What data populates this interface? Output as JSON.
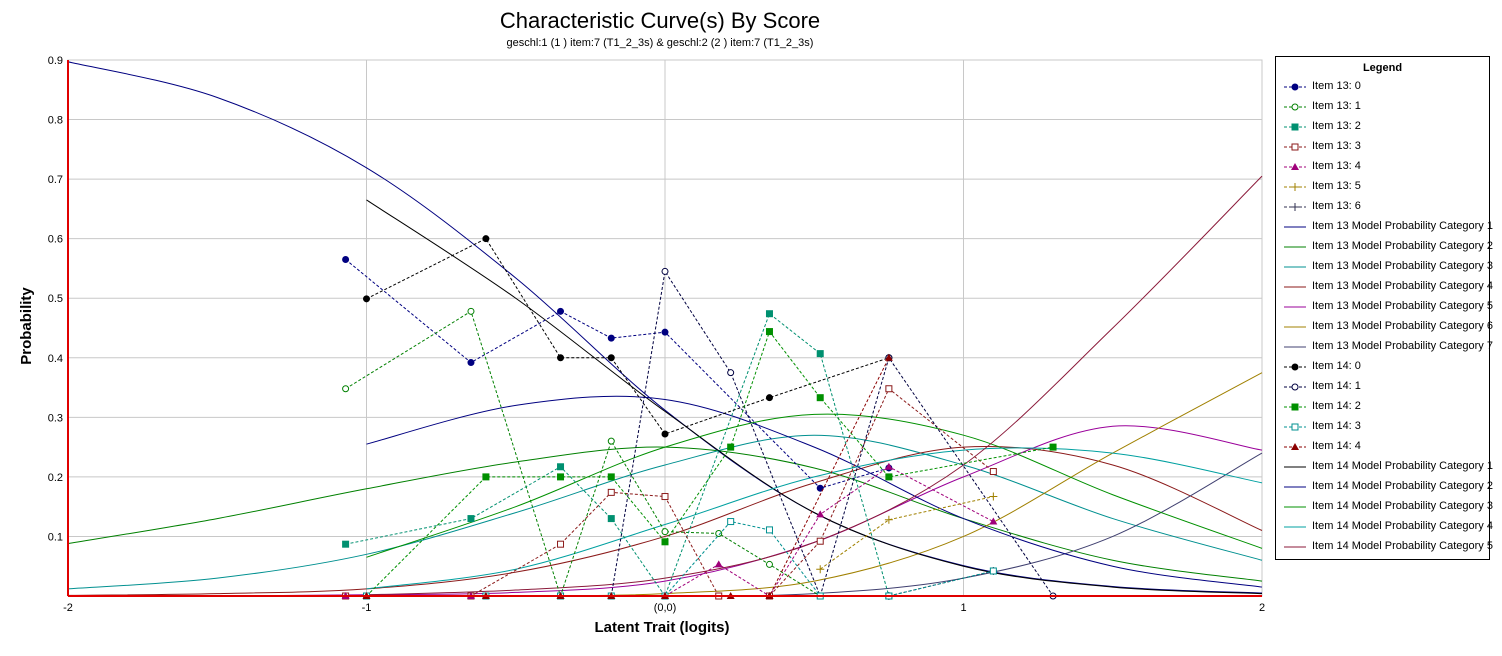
{
  "chart_data": {
    "type": "line",
    "title": "Characteristic Curve(s) By Score",
    "subtitle": "geschl:1 (1 ) item:7 (T1_2_3s) & geschl:2 (2 ) item:7 (T1_2_3s)",
    "xlabel": "Latent Trait (logits)",
    "ylabel": "Probability",
    "xlim": [
      -2,
      2
    ],
    "ylim": [
      0,
      0.9
    ],
    "x_tick_labels": [
      "-2",
      "-1",
      "(0,0)",
      "1",
      "2"
    ],
    "x_ticks": [
      -2,
      -1,
      0,
      1,
      2
    ],
    "y_tick_labels": [
      "0.1",
      "0.2",
      "0.3",
      "0.4",
      "0.5",
      "0.6",
      "0.7",
      "0.8",
      "0.9"
    ],
    "y_ticks": [
      0.1,
      0.2,
      0.3,
      0.4,
      0.5,
      0.6,
      0.7,
      0.8,
      0.9
    ],
    "grid": true,
    "legend_title": "Legend",
    "legend_position": "right",
    "series": [
      {
        "name": "Item 13: 0",
        "kind": "observed",
        "color": "#000080",
        "marker": "circle-filled",
        "x": [
          -1.07,
          -0.65,
          -0.35,
          -0.18,
          0.0,
          0.52,
          0.75
        ],
        "y": [
          0.565,
          0.392,
          0.478,
          0.433,
          0.443,
          0.181,
          0.215
        ]
      },
      {
        "name": "Item 13: 1",
        "kind": "observed",
        "color": "#008000",
        "marker": "circle-open",
        "x": [
          -1.07,
          -0.65,
          -0.35,
          -0.18,
          0.0,
          0.18,
          0.35,
          0.52,
          0.75
        ],
        "y": [
          0.348,
          0.478,
          0.0,
          0.26,
          0.108,
          0.105,
          0.053,
          0.0,
          0.0
        ]
      },
      {
        "name": "Item 13: 2",
        "kind": "observed",
        "color": "#009070",
        "marker": "square-filled",
        "x": [
          -1.07,
          -0.65,
          -0.35,
          -0.18,
          0.0,
          0.35,
          0.52,
          0.75
        ],
        "y": [
          0.087,
          0.13,
          0.217,
          0.13,
          0.0,
          0.474,
          0.407,
          0.0
        ]
      },
      {
        "name": "Item 13: 3",
        "kind": "observed",
        "color": "#8B1A1A",
        "marker": "square-open",
        "x": [
          -1.07,
          -0.65,
          -0.35,
          -0.18,
          0.0,
          0.18,
          0.35,
          0.52,
          0.75,
          1.1
        ],
        "y": [
          0.0,
          0.0,
          0.087,
          0.174,
          0.167,
          0.0,
          0.0,
          0.092,
          0.348,
          0.209
        ]
      },
      {
        "name": "Item 13: 4",
        "kind": "observed",
        "color": "#A0007A",
        "marker": "triangle-filled",
        "x": [
          -1.07,
          -0.65,
          -0.35,
          -0.18,
          0.0,
          0.18,
          0.35,
          0.52,
          0.75,
          1.1
        ],
        "y": [
          0.0,
          0.0,
          0.0,
          0.0,
          0.0,
          0.053,
          0.0,
          0.137,
          0.217,
          0.125
        ]
      },
      {
        "name": "Item 13: 5",
        "kind": "observed",
        "color": "#A08000",
        "marker": "plus",
        "x": [
          0.52,
          0.75,
          1.1
        ],
        "y": [
          0.045,
          0.128,
          0.167
        ]
      },
      {
        "name": "Item 13: 6",
        "kind": "observed",
        "color": "#303050",
        "marker": "plus",
        "x": [
          0.75,
          1.1
        ],
        "y": [
          0.0,
          0.042
        ]
      },
      {
        "name": "Item 13 Model Probability Category 1",
        "kind": "model",
        "color": "#000080",
        "x": [
          -2.0,
          -1.5,
          -1.0,
          -0.5,
          0.0,
          0.5,
          1.0,
          1.5,
          2.0
        ],
        "y": [
          0.897,
          0.837,
          0.719,
          0.534,
          0.312,
          0.14,
          0.051,
          0.016,
          0.005
        ]
      },
      {
        "name": "Item 13 Model Probability Category 2",
        "kind": "model",
        "color": "#008000",
        "x": [
          -2.0,
          -1.5,
          -1.0,
          -0.5,
          0.0,
          0.5,
          1.0,
          1.5,
          2.0
        ],
        "y": [
          0.088,
          0.13,
          0.18,
          0.225,
          0.25,
          0.215,
          0.13,
          0.06,
          0.025
        ]
      },
      {
        "name": "Item 13 Model Probability Category 3",
        "kind": "model",
        "color": "#009090",
        "x": [
          -2.0,
          -1.5,
          -1.0,
          -0.5,
          0.0,
          0.5,
          1.0,
          1.5,
          2.0
        ],
        "y": [
          0.012,
          0.03,
          0.07,
          0.14,
          0.22,
          0.27,
          0.22,
          0.13,
          0.06
        ]
      },
      {
        "name": "Item 13 Model Probability Category 4",
        "kind": "model",
        "color": "#8B1A1A",
        "x": [
          -2.0,
          -1.5,
          -1.0,
          -0.5,
          0.0,
          0.5,
          1.0,
          1.5,
          2.0
        ],
        "y": [
          0.001,
          0.004,
          0.012,
          0.04,
          0.1,
          0.19,
          0.25,
          0.22,
          0.11
        ]
      },
      {
        "name": "Item 13 Model Probability Category 5",
        "kind": "model",
        "color": "#9A009A",
        "x": [
          -2.0,
          -1.5,
          -1.0,
          -0.5,
          0.0,
          0.5,
          1.0,
          1.5,
          2.0
        ],
        "y": [
          0.0,
          0.0,
          0.002,
          0.006,
          0.025,
          0.09,
          0.2,
          0.285,
          0.245
        ]
      },
      {
        "name": "Item 13 Model Probability Category 6",
        "kind": "model",
        "color": "#A08000",
        "x": [
          -2.0,
          -1.5,
          -1.0,
          -0.5,
          0.0,
          0.5,
          1.0,
          1.5,
          2.0
        ],
        "y": [
          0.0,
          0.0,
          0.0,
          0.0,
          0.004,
          0.025,
          0.1,
          0.24,
          0.375
        ]
      },
      {
        "name": "Item 13 Model Probability Category 7",
        "kind": "model",
        "color": "#404070",
        "x": [
          -2.0,
          -1.5,
          -1.0,
          -0.5,
          0.0,
          0.5,
          1.0,
          1.5,
          2.0
        ],
        "y": [
          0.0,
          0.0,
          0.0,
          0.0,
          0.0,
          0.004,
          0.03,
          0.1,
          0.24
        ]
      },
      {
        "name": "Item 14: 0",
        "kind": "observed",
        "color": "#000000",
        "marker": "circle-filled",
        "x": [
          -1.0,
          -0.6,
          -0.35,
          -0.18,
          0.0,
          0.35,
          0.75
        ],
        "y": [
          0.499,
          0.6,
          0.4,
          0.4,
          0.272,
          0.333,
          0.4
        ]
      },
      {
        "name": "Item 14: 1",
        "kind": "observed",
        "color": "#000040",
        "marker": "circle-open",
        "x": [
          -1.0,
          -0.6,
          -0.35,
          -0.18,
          0.0,
          0.22,
          0.52,
          0.75,
          1.3
        ],
        "y": [
          0.0,
          0.0,
          0.0,
          0.0,
          0.545,
          0.375,
          0.0,
          0.4,
          0.0
        ]
      },
      {
        "name": "Item 14: 2",
        "kind": "observed",
        "color": "#009000",
        "marker": "square-filled",
        "x": [
          -1.0,
          -0.6,
          -0.35,
          -0.18,
          0.0,
          0.22,
          0.35,
          0.52,
          0.75,
          1.3
        ],
        "y": [
          0.0,
          0.2,
          0.2,
          0.2,
          0.091,
          0.25,
          0.444,
          0.333,
          0.2,
          0.25
        ]
      },
      {
        "name": "Item 14: 3",
        "kind": "observed",
        "color": "#009090",
        "marker": "square-open",
        "x": [
          -1.0,
          -0.6,
          -0.35,
          -0.18,
          0.0,
          0.22,
          0.35,
          0.52,
          0.75,
          1.1
        ],
        "y": [
          0.0,
          0.0,
          0.0,
          0.0,
          0.0,
          0.125,
          0.111,
          0.0,
          0.0,
          0.042
        ]
      },
      {
        "name": "Item 14: 4",
        "kind": "observed",
        "color": "#8B0000",
        "marker": "triangle-filled",
        "x": [
          -1.0,
          -0.6,
          -0.35,
          -0.18,
          0.0,
          0.22,
          0.35,
          0.75
        ],
        "y": [
          0.0,
          0.0,
          0.0,
          0.0,
          0.0,
          0.0,
          0.0,
          0.4
        ]
      },
      {
        "name": "Item 14 Model Probability Category 1",
        "kind": "model",
        "color": "#000000",
        "x": [
          -1.0,
          -0.5,
          0.0,
          0.5,
          1.0,
          1.5,
          2.0
        ],
        "y": [
          0.665,
          0.5,
          0.31,
          0.14,
          0.05,
          0.015,
          0.004
        ]
      },
      {
        "name": "Item 14 Model Probability Category 2",
        "kind": "model",
        "color": "#000080",
        "x": [
          -1.0,
          -0.5,
          0.0,
          0.5,
          1.0,
          1.5,
          2.0
        ],
        "y": [
          0.255,
          0.32,
          0.33,
          0.25,
          0.13,
          0.05,
          0.015
        ]
      },
      {
        "name": "Item 14 Model Probability Category 3",
        "kind": "model",
        "color": "#009000",
        "x": [
          -1.0,
          -0.5,
          0.0,
          0.5,
          1.0,
          1.5,
          2.0
        ],
        "y": [
          0.065,
          0.15,
          0.25,
          0.305,
          0.27,
          0.17,
          0.08
        ]
      },
      {
        "name": "Item 14 Model Probability Category 4",
        "kind": "model",
        "color": "#00A0A0",
        "x": [
          -1.0,
          -0.5,
          0.0,
          0.5,
          1.0,
          1.5,
          2.0
        ],
        "y": [
          0.012,
          0.045,
          0.12,
          0.2,
          0.245,
          0.24,
          0.19
        ]
      },
      {
        "name": "Item 14 Model Probability Category 5",
        "kind": "model",
        "color": "#8B1A3A",
        "x": [
          -1.0,
          -0.5,
          0.0,
          0.5,
          1.0,
          1.5,
          2.0
        ],
        "y": [
          0.002,
          0.01,
          0.03,
          0.09,
          0.22,
          0.45,
          0.705
        ]
      }
    ]
  }
}
